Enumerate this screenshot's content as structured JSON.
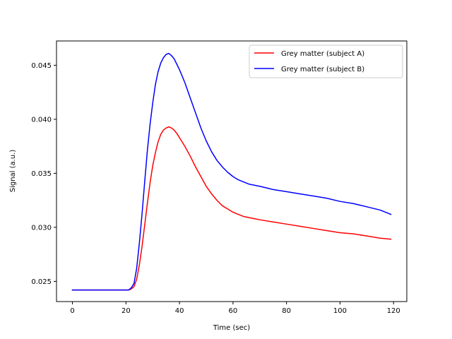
{
  "chart_data": {
    "type": "line",
    "title": "",
    "xlabel": "Time (sec)",
    "ylabel": "Signal (a.u.)",
    "xlim": [
      -5.95,
      124.95
    ],
    "ylim": [
      0.02313,
      0.04725
    ],
    "xticks": [
      0,
      20,
      40,
      60,
      80,
      100,
      120
    ],
    "yticks": [
      0.025,
      0.03,
      0.035,
      0.04,
      0.045
    ],
    "xtick_labels": [
      "0",
      "20",
      "40",
      "60",
      "80",
      "100",
      "120"
    ],
    "ytick_labels": [
      "0.025",
      "0.030",
      "0.035",
      "0.040",
      "0.045"
    ],
    "grid": false,
    "legend_position": "top-right",
    "series": [
      {
        "name": "Grey matter (subject A)",
        "color": "#ff0000",
        "x": [
          0,
          21,
          22,
          23,
          24,
          25,
          26,
          27,
          28,
          29,
          30,
          31,
          32,
          33,
          34,
          35,
          36,
          37,
          38,
          39,
          40,
          42,
          44,
          46,
          48,
          50,
          52,
          54,
          56,
          58,
          60,
          62,
          64,
          66,
          68,
          70,
          75,
          80,
          85,
          90,
          95,
          100,
          105,
          110,
          115,
          119
        ],
        "values": [
          0.0242,
          0.0242,
          0.0243,
          0.0245,
          0.0252,
          0.0265,
          0.0282,
          0.0302,
          0.0322,
          0.0341,
          0.0357,
          0.0369,
          0.0379,
          0.0386,
          0.039,
          0.0392,
          0.0393,
          0.0392,
          0.039,
          0.0387,
          0.0383,
          0.0375,
          0.0366,
          0.0356,
          0.0347,
          0.0338,
          0.0331,
          0.0325,
          0.032,
          0.0317,
          0.0314,
          0.0312,
          0.031,
          0.0309,
          0.0308,
          0.0307,
          0.0305,
          0.0303,
          0.0301,
          0.0299,
          0.0297,
          0.0295,
          0.0294,
          0.0292,
          0.029,
          0.0289
        ]
      },
      {
        "name": "Grey matter (subject B)",
        "color": "#0000ff",
        "x": [
          0,
          21,
          22,
          23,
          24,
          25,
          26,
          27,
          28,
          29,
          30,
          31,
          32,
          33,
          34,
          35,
          36,
          37,
          38,
          39,
          40,
          42,
          44,
          46,
          48,
          50,
          52,
          54,
          56,
          58,
          60,
          62,
          64,
          66,
          68,
          70,
          75,
          80,
          85,
          90,
          95,
          100,
          105,
          110,
          115,
          119
        ],
        "values": [
          0.0242,
          0.0242,
          0.0244,
          0.0248,
          0.0262,
          0.0285,
          0.0312,
          0.0342,
          0.0371,
          0.0395,
          0.0415,
          0.0432,
          0.0444,
          0.0452,
          0.0457,
          0.046,
          0.0461,
          0.0459,
          0.0456,
          0.0451,
          0.0446,
          0.0434,
          0.042,
          0.0406,
          0.0392,
          0.038,
          0.037,
          0.0362,
          0.0356,
          0.0351,
          0.0347,
          0.0344,
          0.0342,
          0.034,
          0.0339,
          0.0338,
          0.0335,
          0.0333,
          0.0331,
          0.0329,
          0.0327,
          0.0324,
          0.0322,
          0.0319,
          0.0316,
          0.0312
        ]
      }
    ]
  }
}
